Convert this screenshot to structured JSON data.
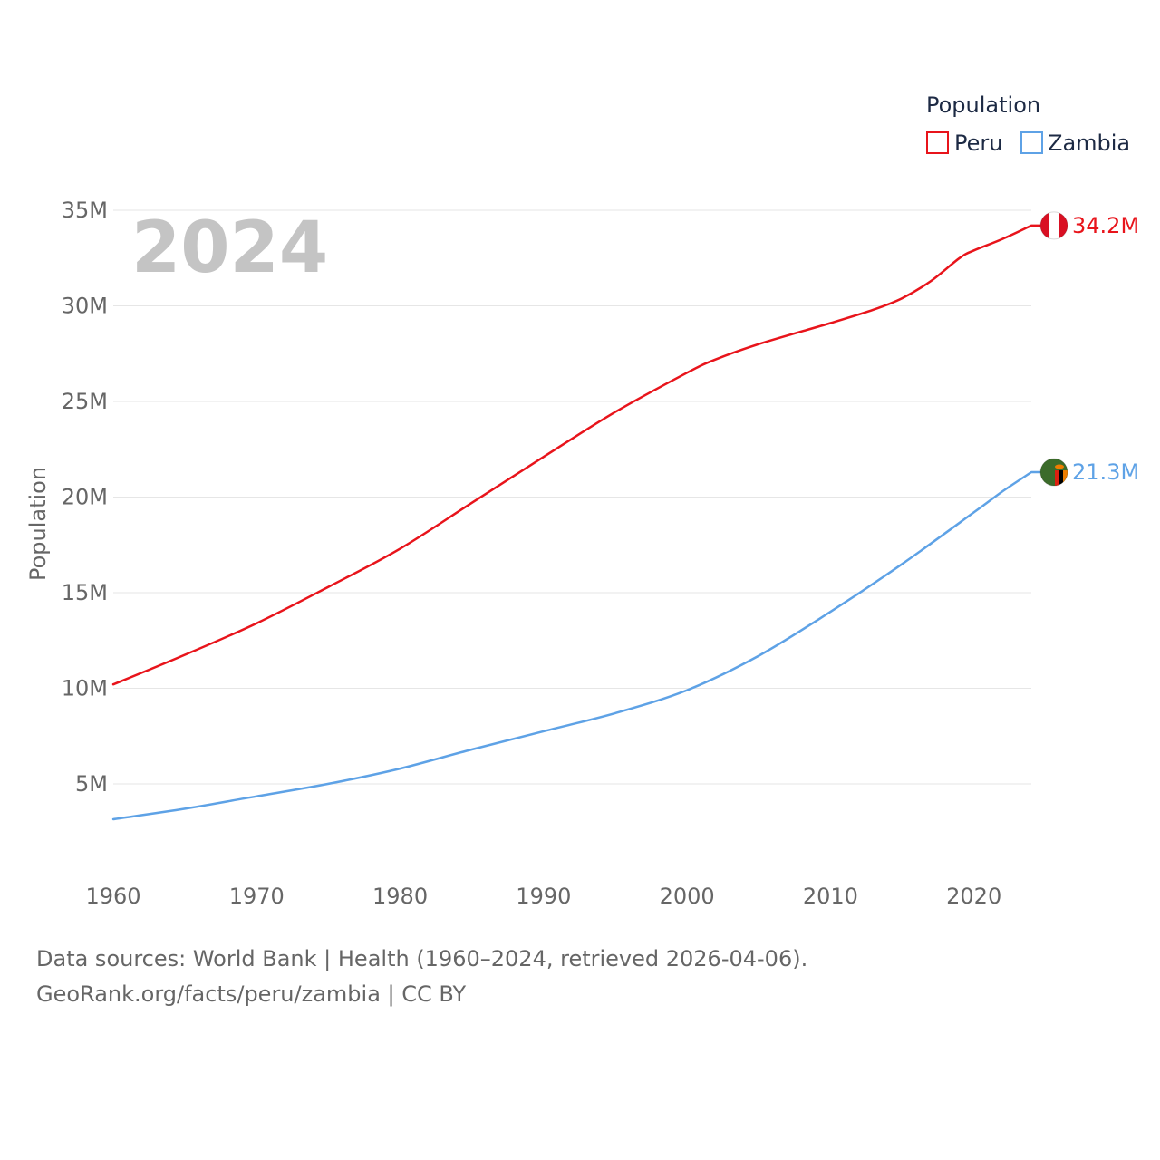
{
  "chart_data": {
    "type": "line",
    "title": "",
    "year_label": "2024",
    "xlabel": "",
    "ylabel": "Population",
    "xlim": [
      1960,
      2024
    ],
    "ylim": [
      1300000,
      35000000
    ],
    "x_ticks": [
      {
        "value": 1960,
        "label": "1960"
      },
      {
        "value": 1970,
        "label": "1970"
      },
      {
        "value": 1980,
        "label": "1980"
      },
      {
        "value": 1990,
        "label": "1990"
      },
      {
        "value": 2000,
        "label": "2000"
      },
      {
        "value": 2010,
        "label": "2010"
      },
      {
        "value": 2020,
        "label": "2020"
      }
    ],
    "y_ticks": [
      {
        "value": 5000000,
        "label": "5M"
      },
      {
        "value": 10000000,
        "label": "10M"
      },
      {
        "value": 15000000,
        "label": "15M"
      },
      {
        "value": 20000000,
        "label": "20M"
      },
      {
        "value": 25000000,
        "label": "25M"
      },
      {
        "value": 30000000,
        "label": "30M"
      },
      {
        "value": 35000000,
        "label": "35M"
      }
    ],
    "legend": {
      "title": "Population",
      "position": "top-right"
    },
    "series": [
      {
        "name": "Peru",
        "color": "#e8141b",
        "end_label": "34.2M",
        "flag": "peru-flag",
        "points": [
          [
            1960,
            10200000
          ],
          [
            1965,
            11750000
          ],
          [
            1970,
            13400000
          ],
          [
            1975,
            15300000
          ],
          [
            1980,
            17300000
          ],
          [
            1985,
            19700000
          ],
          [
            1990,
            22100000
          ],
          [
            1995,
            24450000
          ],
          [
            2000,
            26500000
          ],
          [
            2002,
            27200000
          ],
          [
            2005,
            28000000
          ],
          [
            2010,
            29100000
          ],
          [
            2013,
            29800000
          ],
          [
            2015,
            30400000
          ],
          [
            2017,
            31300000
          ],
          [
            2019,
            32500000
          ],
          [
            2020,
            32900000
          ],
          [
            2022,
            33500000
          ],
          [
            2024,
            34200000
          ]
        ]
      },
      {
        "name": "Zambia",
        "color": "#5ea2e6",
        "end_label": "21.3M",
        "flag": "zambia-flag",
        "points": [
          [
            1960,
            3150000
          ],
          [
            1965,
            3700000
          ],
          [
            1970,
            4350000
          ],
          [
            1975,
            5000000
          ],
          [
            1980,
            5800000
          ],
          [
            1985,
            6800000
          ],
          [
            1990,
            7750000
          ],
          [
            1995,
            8700000
          ],
          [
            2000,
            9900000
          ],
          [
            2005,
            11700000
          ],
          [
            2010,
            14000000
          ],
          [
            2015,
            16500000
          ],
          [
            2020,
            19200000
          ],
          [
            2022,
            20300000
          ],
          [
            2024,
            21300000
          ]
        ]
      }
    ]
  },
  "footer": {
    "sources": "Data sources: World Bank | Health (1960–2024, retrieved 2026-04-06).",
    "attribution": "GeoRank.org/facts/peru/zambia | CC BY"
  }
}
